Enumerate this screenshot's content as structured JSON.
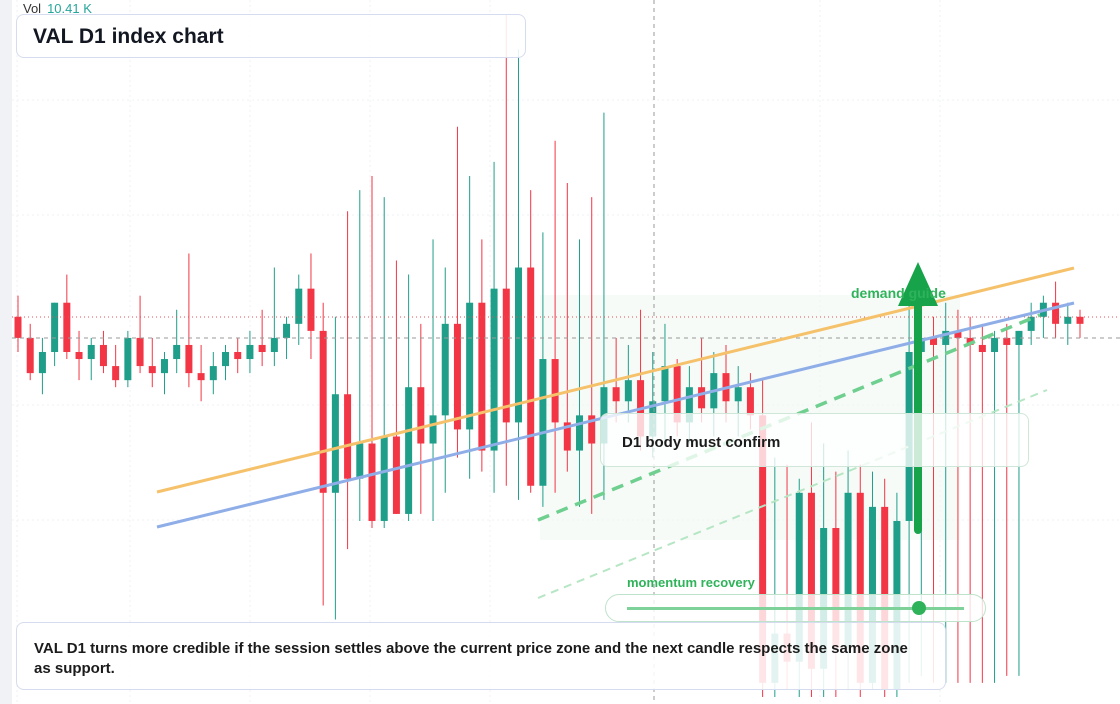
{
  "chart_data": {
    "type": "candlestick",
    "title": "VAL D1 index chart",
    "volume_label": "Vol",
    "volume_value": "10.41 K",
    "annotations": [
      "demand guide",
      "D1 body must confirm",
      "momentum recovery",
      "VAL D1 turns more credible if the session settles above the current price zone and the next candle respects the same zone as support."
    ],
    "up_color": "#1f9e89",
    "down_color": "#f23645",
    "ylim": [
      0,
      100
    ],
    "open": [
      55,
      52,
      47,
      50,
      57,
      50,
      49,
      51,
      48,
      46,
      52,
      48,
      47,
      49,
      51,
      47,
      46,
      48,
      50,
      49,
      51,
      50,
      52,
      54,
      59,
      53,
      30,
      44,
      32,
      37,
      26,
      38,
      27,
      45,
      37,
      41,
      54,
      39,
      57,
      36,
      59,
      40,
      62,
      31,
      49,
      40,
      36,
      41,
      37,
      45,
      43,
      46,
      38,
      43,
      48,
      40,
      45,
      42,
      47,
      43,
      45,
      41,
      3,
      10,
      6,
      30,
      5,
      25,
      8,
      30,
      3,
      28,
      2,
      26,
      50,
      52,
      51,
      53,
      52,
      51,
      50,
      52,
      51,
      53,
      55,
      57,
      54,
      55
    ],
    "high": [
      58,
      54,
      52,
      57,
      61,
      53,
      52,
      53,
      51,
      53,
      58,
      52,
      50,
      56,
      64,
      51,
      50,
      51,
      52,
      53,
      56,
      62,
      55,
      61,
      64,
      57,
      55,
      70,
      73,
      75,
      72,
      63,
      61,
      54,
      66,
      62,
      82,
      75,
      66,
      77,
      98,
      93,
      73,
      67,
      80,
      74,
      66,
      72,
      84,
      52,
      51,
      56,
      50,
      54,
      49,
      48,
      52,
      50,
      51,
      48,
      47,
      46,
      35,
      34,
      32,
      40,
      37,
      33,
      36,
      34,
      33,
      32,
      30,
      58,
      56,
      55,
      57,
      56,
      55,
      54,
      53,
      54,
      53,
      57,
      58,
      60,
      57,
      56
    ],
    "low": [
      50,
      46,
      44,
      48,
      49,
      46,
      46,
      47,
      45,
      45,
      47,
      45,
      44,
      47,
      45,
      43,
      44,
      46,
      47,
      47,
      48,
      48,
      49,
      51,
      49,
      14,
      12,
      22,
      26,
      25,
      25,
      27,
      26,
      27,
      26,
      30,
      35,
      32,
      33,
      30,
      31,
      29,
      30,
      28,
      30,
      33,
      28,
      27,
      29,
      40,
      40,
      36,
      35,
      37,
      38,
      37,
      40,
      38,
      40,
      38,
      39,
      1,
      1,
      2,
      1,
      1,
      1,
      1,
      2,
      1,
      2,
      1,
      1,
      3,
      4,
      3,
      3,
      3,
      3,
      3,
      3,
      4,
      4,
      51,
      52,
      52,
      51,
      52
    ],
    "close": [
      52,
      47,
      50,
      57,
      50,
      49,
      51,
      48,
      46,
      52,
      48,
      47,
      49,
      51,
      47,
      46,
      48,
      50,
      49,
      51,
      50,
      52,
      54,
      59,
      53,
      30,
      44,
      32,
      37,
      26,
      38,
      27,
      45,
      37,
      41,
      54,
      39,
      57,
      36,
      59,
      40,
      62,
      31,
      49,
      40,
      36,
      41,
      37,
      45,
      43,
      46,
      38,
      43,
      48,
      40,
      45,
      42,
      47,
      43,
      45,
      41,
      3,
      10,
      6,
      30,
      5,
      25,
      8,
      30,
      3,
      28,
      2,
      26,
      50,
      52,
      51,
      53,
      52,
      51,
      50,
      52,
      51,
      53,
      55,
      57,
      54,
      55,
      54
    ]
  }
}
